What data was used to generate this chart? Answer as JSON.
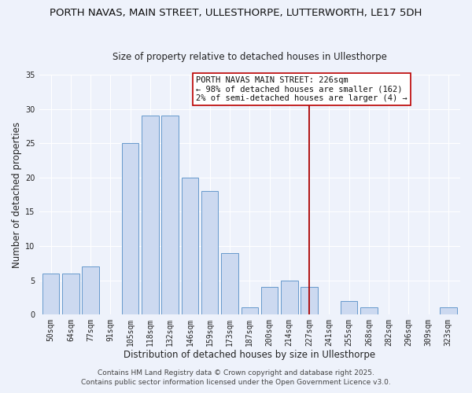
{
  "title": "PORTH NAVAS, MAIN STREET, ULLESTHORPE, LUTTERWORTH, LE17 5DH",
  "subtitle": "Size of property relative to detached houses in Ullesthorpe",
  "xlabel": "Distribution of detached houses by size in Ullesthorpe",
  "ylabel": "Number of detached properties",
  "bar_labels": [
    "50sqm",
    "64sqm",
    "77sqm",
    "91sqm",
    "105sqm",
    "118sqm",
    "132sqm",
    "146sqm",
    "159sqm",
    "173sqm",
    "187sqm",
    "200sqm",
    "214sqm",
    "227sqm",
    "241sqm",
    "255sqm",
    "268sqm",
    "282sqm",
    "296sqm",
    "309sqm",
    "323sqm"
  ],
  "bar_heights": [
    6,
    6,
    7,
    0,
    25,
    29,
    29,
    20,
    18,
    9,
    1,
    4,
    5,
    4,
    0,
    2,
    1,
    0,
    0,
    0,
    1
  ],
  "bar_color": "#ccd9f0",
  "bar_edge_color": "#6699cc",
  "vline_x_index": 13,
  "vline_color": "#aa0000",
  "ylim": [
    0,
    35
  ],
  "yticks": [
    0,
    5,
    10,
    15,
    20,
    25,
    30,
    35
  ],
  "annotation_title": "PORTH NAVAS MAIN STREET: 226sqm",
  "annotation_line1": "← 98% of detached houses are smaller (162)",
  "annotation_line2": "2% of semi-detached houses are larger (4) →",
  "annotation_box_color": "#ffffff",
  "annotation_border_color": "#bb0000",
  "footer1": "Contains HM Land Registry data © Crown copyright and database right 2025.",
  "footer2": "Contains public sector information licensed under the Open Government Licence v3.0.",
  "background_color": "#eef2fb",
  "grid_color": "#ffffff",
  "title_fontsize": 9.5,
  "subtitle_fontsize": 8.5,
  "xlabel_fontsize": 8.5,
  "ylabel_fontsize": 8.5,
  "tick_fontsize": 7,
  "annotation_fontsize": 7.5,
  "footer_fontsize": 6.5
}
